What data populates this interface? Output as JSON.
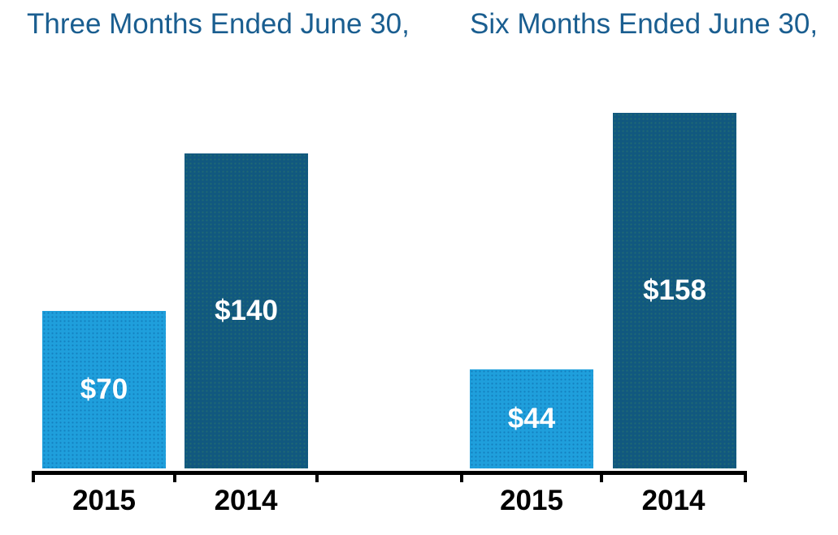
{
  "chart_data": {
    "type": "bar",
    "groups": [
      {
        "title": "Three Months Ended June 30,",
        "categories": [
          "2015",
          "2014"
        ],
        "values": [
          70,
          140
        ],
        "value_labels": [
          "$70",
          "$140"
        ]
      },
      {
        "title": "Six Months Ended June 30,",
        "categories": [
          "2015",
          "2014"
        ],
        "values": [
          44,
          158
        ],
        "value_labels": [
          "$44",
          "$158"
        ]
      }
    ],
    "value_prefix": "$",
    "ylim": [
      0,
      158
    ],
    "grid": false,
    "legend": false,
    "bar_value_label_position": "centered-inside-bar"
  },
  "colors": {
    "bar_light": "#1f9fdc",
    "bar_dark": "#11587f",
    "title_text": "#1a5e90",
    "axis": "#000000",
    "value_text": "#ffffff",
    "category_text": "#000000",
    "background": "#ffffff"
  }
}
